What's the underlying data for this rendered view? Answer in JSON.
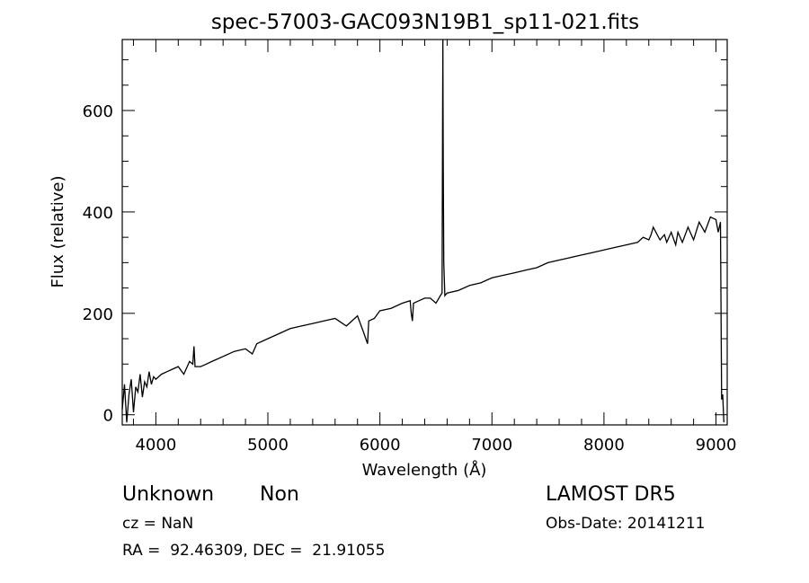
{
  "chart_data": {
    "type": "line",
    "title": "spec-57003-GAC093N19B1_sp11-021.fits",
    "xlabel": "Wavelength (Å)",
    "ylabel": "Flux (relative)",
    "xlim": [
      3700,
      9100
    ],
    "ylim": [
      -20,
      740
    ],
    "xticks": [
      4000,
      5000,
      6000,
      7000,
      8000,
      9000
    ],
    "yticks": [
      0,
      200,
      400,
      600
    ],
    "xtick_labels": [
      "4000",
      "5000",
      "6000",
      "7000",
      "8000",
      "9000"
    ],
    "ytick_labels": [
      "0",
      "200",
      "400",
      "600"
    ],
    "grid": false,
    "series": [
      {
        "x": [
          3700,
          3720,
          3740,
          3760,
          3780,
          3800,
          3820,
          3840,
          3860,
          3880,
          3900,
          3920,
          3940,
          3960,
          3980,
          4000,
          4050,
          4100,
          4150,
          4200,
          4250,
          4300,
          4330,
          4340,
          4350,
          4400,
          4450,
          4500,
          4550,
          4600,
          4700,
          4800,
          4861,
          4900,
          5000,
          5100,
          5200,
          5300,
          5400,
          5500,
          5600,
          5700,
          5800,
          5850,
          5890,
          5900,
          5950,
          6000,
          6100,
          6200,
          6270,
          6280,
          6290,
          6300,
          6350,
          6400,
          6450,
          6500,
          6540,
          6555,
          6560,
          6562,
          6563,
          6565,
          6570,
          6580,
          6600,
          6700,
          6800,
          6900,
          7000,
          7100,
          7200,
          7300,
          7400,
          7500,
          7600,
          7700,
          7800,
          7900,
          8000,
          8100,
          8200,
          8300,
          8350,
          8400,
          8420,
          8440,
          8500,
          8540,
          8560,
          8600,
          8640,
          8660,
          8700,
          8750,
          8800,
          8850,
          8900,
          8950,
          9000,
          9020,
          9040,
          9050,
          9060,
          9070
        ],
        "y": [
          10,
          60,
          -15,
          40,
          70,
          5,
          55,
          45,
          80,
          35,
          65,
          55,
          85,
          60,
          75,
          70,
          80,
          85,
          90,
          95,
          80,
          105,
          100,
          135,
          95,
          95,
          100,
          105,
          110,
          115,
          125,
          130,
          120,
          140,
          150,
          160,
          170,
          175,
          180,
          185,
          190,
          175,
          195,
          165,
          140,
          185,
          190,
          205,
          210,
          220,
          225,
          200,
          185,
          220,
          225,
          230,
          230,
          220,
          235,
          240,
          600,
          740,
          660,
          500,
          300,
          235,
          240,
          245,
          255,
          260,
          270,
          275,
          280,
          285,
          290,
          300,
          305,
          310,
          315,
          320,
          325,
          330,
          335,
          340,
          350,
          345,
          355,
          370,
          345,
          355,
          340,
          360,
          335,
          360,
          340,
          370,
          345,
          380,
          360,
          390,
          385,
          360,
          380,
          30,
          40,
          -15
        ]
      }
    ]
  },
  "info": {
    "class": "Unknown",
    "subclass": "Non",
    "survey": "LAMOST DR5",
    "cz": "cz = NaN",
    "obs_date": "Obs-Date: 20141211",
    "coords": "RA =  92.46309, DEC =  21.91055"
  }
}
